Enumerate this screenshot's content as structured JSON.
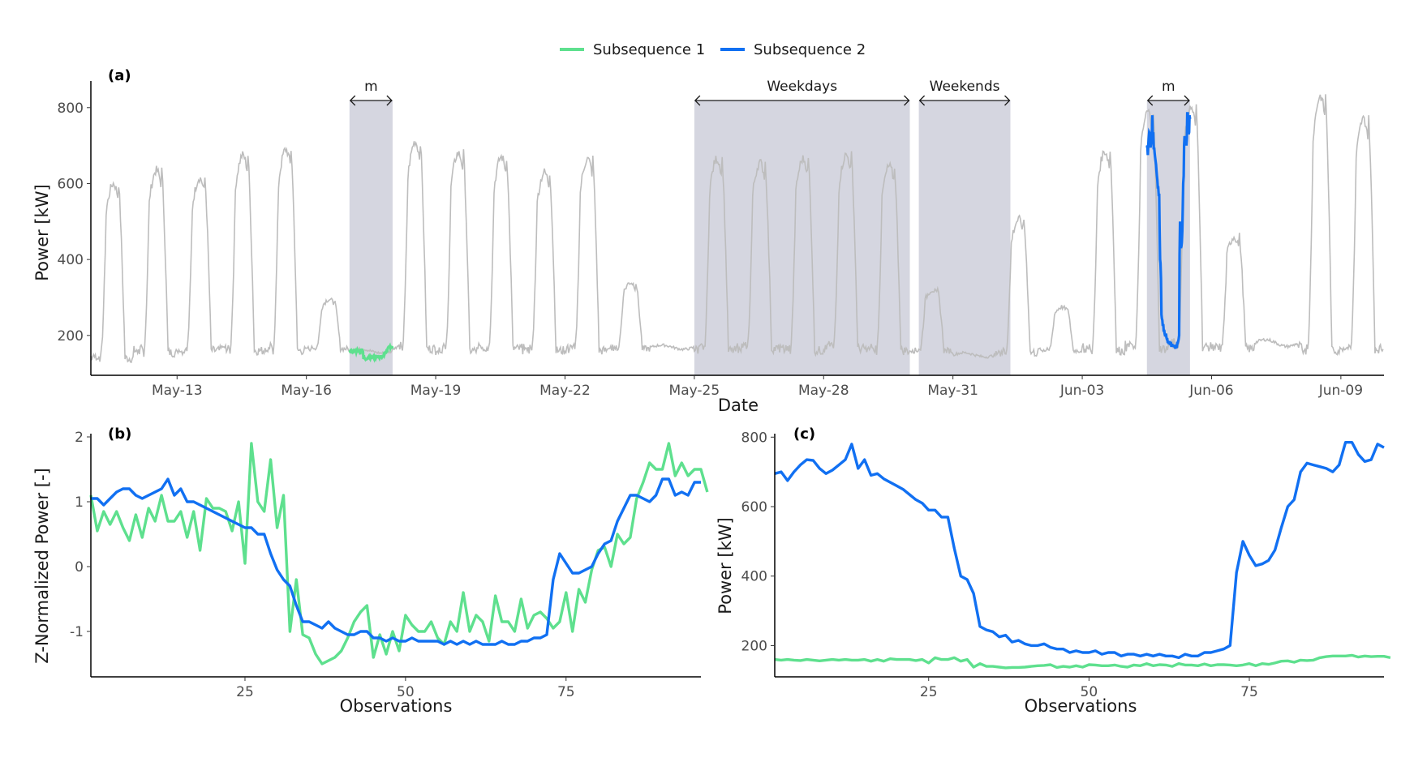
{
  "legend": {
    "items": [
      {
        "label": "Subsequence 1",
        "color": "#5ee08e"
      },
      {
        "label": "Subsequence 2",
        "color": "#1170f2"
      }
    ]
  },
  "colors": {
    "background_series": "#bdbdbd",
    "shade": "#d5d6e0",
    "axis": "#000000"
  },
  "chart_data": [
    {
      "panel": "(a)",
      "type": "line",
      "xlabel": "Date",
      "ylabel": "Power [kW]",
      "x_range": [
        "2020-05-11T00:00",
        "2020-06-10T00:00"
      ],
      "ylim": [
        95,
        870
      ],
      "x_ticks": [
        {
          "date": "2020-05-13",
          "label": "May-13"
        },
        {
          "date": "2020-05-16",
          "label": "May-16"
        },
        {
          "date": "2020-05-19",
          "label": "May-19"
        },
        {
          "date": "2020-05-22",
          "label": "May-22"
        },
        {
          "date": "2020-05-25",
          "label": "May-25"
        },
        {
          "date": "2020-05-28",
          "label": "May-28"
        },
        {
          "date": "2020-05-31",
          "label": "May-31"
        },
        {
          "date": "2020-06-03",
          "label": "Jun-03"
        },
        {
          "date": "2020-06-06",
          "label": "Jun-06"
        },
        {
          "date": "2020-06-09",
          "label": "Jun-09"
        }
      ],
      "y_ticks": [
        200,
        400,
        600,
        800
      ],
      "daily_profile": [
        {
          "date": "2020-05-11",
          "base": 140,
          "peak": 600
        },
        {
          "date": "2020-05-12",
          "base": 155,
          "peak": 635
        },
        {
          "date": "2020-05-13",
          "base": 160,
          "peak": 615
        },
        {
          "date": "2020-05-14",
          "base": 160,
          "peak": 675
        },
        {
          "date": "2020-05-15",
          "base": 160,
          "peak": 690
        },
        {
          "date": "2020-05-16",
          "base": 165,
          "peak": 295
        },
        {
          "date": "2020-05-17",
          "base": 150,
          "peak": 168
        },
        {
          "date": "2020-05-18",
          "base": 165,
          "peak": 710
        },
        {
          "date": "2020-05-19",
          "base": 160,
          "peak": 680
        },
        {
          "date": "2020-05-20",
          "base": 165,
          "peak": 670
        },
        {
          "date": "2020-05-21",
          "base": 160,
          "peak": 630
        },
        {
          "date": "2020-05-22",
          "base": 160,
          "peak": 665
        },
        {
          "date": "2020-05-23",
          "base": 165,
          "peak": 340
        },
        {
          "date": "2020-05-24",
          "base": 160,
          "peak": 178
        },
        {
          "date": "2020-05-25",
          "base": 160,
          "peak": 665
        },
        {
          "date": "2020-05-26",
          "base": 165,
          "peak": 655
        },
        {
          "date": "2020-05-27",
          "base": 160,
          "peak": 665
        },
        {
          "date": "2020-05-28",
          "base": 165,
          "peak": 675
        },
        {
          "date": "2020-05-29",
          "base": 160,
          "peak": 645
        },
        {
          "date": "2020-05-30",
          "base": 160,
          "peak": 320
        },
        {
          "date": "2020-05-31",
          "base": 140,
          "peak": 158
        },
        {
          "date": "2020-06-01",
          "base": 155,
          "peak": 505
        },
        {
          "date": "2020-06-02",
          "base": 160,
          "peak": 275
        },
        {
          "date": "2020-06-03",
          "base": 160,
          "peak": 685
        },
        {
          "date": "2020-06-04",
          "base": 165,
          "peak": 790
        },
        {
          "date": "2020-06-05",
          "base": 170,
          "peak": 800
        },
        {
          "date": "2020-06-06",
          "base": 165,
          "peak": 460
        },
        {
          "date": "2020-06-07",
          "base": 165,
          "peak": 195
        },
        {
          "date": "2020-06-08",
          "base": 160,
          "peak": 830
        },
        {
          "date": "2020-06-09",
          "base": 165,
          "peak": 770
        }
      ],
      "shaded_regions": [
        {
          "start": "2020-05-17T00:00",
          "end": "2020-05-18T00:00",
          "label": "m"
        },
        {
          "start": "2020-05-25T00:00",
          "end": "2020-05-30T00:00",
          "label": "Weekdays"
        },
        {
          "start": "2020-05-30T05:00",
          "end": "2020-06-01T08:00",
          "label": "Weekends"
        },
        {
          "start": "2020-06-04T12:00",
          "end": "2020-06-05T12:00",
          "label": "m"
        }
      ],
      "highlights": [
        {
          "series": "Subsequence 1",
          "start": "2020-05-17T00:00",
          "end": "2020-05-18T00:00"
        },
        {
          "series": "Subsequence 2",
          "start": "2020-06-04T12:00",
          "end": "2020-06-05T12:00"
        }
      ]
    },
    {
      "panel": "(b)",
      "type": "line",
      "xlabel": "Observations",
      "ylabel": "Z-Normalized Power [-]",
      "xlim": [
        1,
        96
      ],
      "ylim": [
        -1.7,
        2.05
      ],
      "x_ticks": [
        25,
        50,
        75
      ],
      "y_ticks": [
        -1,
        0,
        1,
        2
      ],
      "series": [
        {
          "name": "Subsequence 1",
          "color": "#5ee08e",
          "values": [
            1.1,
            0.55,
            0.85,
            0.65,
            0.85,
            0.6,
            0.4,
            0.8,
            0.45,
            0.9,
            0.7,
            1.1,
            0.7,
            0.7,
            0.85,
            0.45,
            0.85,
            0.25,
            1.05,
            0.9,
            0.9,
            0.85,
            0.55,
            1.0,
            0.05,
            1.9,
            1.0,
            0.85,
            1.65,
            0.6,
            1.1,
            -1.0,
            -0.2,
            -1.05,
            -1.1,
            -1.35,
            -1.5,
            -1.45,
            -1.4,
            -1.3,
            -1.1,
            -0.85,
            -0.7,
            -0.6,
            -1.4,
            -1.05,
            -1.35,
            -1.0,
            -1.3,
            -0.75,
            -0.9,
            -1.0,
            -1.0,
            -0.85,
            -1.1,
            -1.2,
            -0.85,
            -1.0,
            -0.4,
            -1.0,
            -0.75,
            -0.85,
            -1.15,
            -0.45,
            -0.85,
            -0.85,
            -1.0,
            -0.5,
            -0.95,
            -0.75,
            -0.7,
            -0.8,
            -0.95,
            -0.85,
            -0.4,
            -1.0,
            -0.35,
            -0.55,
            -0.05,
            0.25,
            0.3,
            0.0,
            0.5,
            0.35,
            0.45,
            1.05,
            1.3,
            1.6,
            1.5,
            1.5,
            1.9,
            1.4,
            1.6,
            1.4,
            1.5,
            1.5,
            1.15
          ]
        },
        {
          "name": "Subsequence 2",
          "color": "#1170f2",
          "values": [
            1.05,
            1.05,
            0.95,
            1.05,
            1.15,
            1.2,
            1.2,
            1.1,
            1.05,
            1.1,
            1.15,
            1.2,
            1.35,
            1.1,
            1.2,
            1.0,
            1.0,
            0.95,
            0.9,
            0.85,
            0.8,
            0.75,
            0.7,
            0.65,
            0.6,
            0.6,
            0.5,
            0.5,
            0.2,
            -0.05,
            -0.2,
            -0.3,
            -0.6,
            -0.85,
            -0.85,
            -0.9,
            -0.95,
            -0.85,
            -0.95,
            -1.0,
            -1.05,
            -1.05,
            -1.0,
            -1.0,
            -1.1,
            -1.1,
            -1.15,
            -1.1,
            -1.15,
            -1.15,
            -1.1,
            -1.15,
            -1.15,
            -1.15,
            -1.15,
            -1.2,
            -1.15,
            -1.2,
            -1.15,
            -1.2,
            -1.15,
            -1.2,
            -1.2,
            -1.2,
            -1.15,
            -1.2,
            -1.2,
            -1.15,
            -1.15,
            -1.1,
            -1.1,
            -1.05,
            -0.2,
            0.2,
            0.05,
            -0.1,
            -0.1,
            -0.05,
            0.0,
            0.2,
            0.35,
            0.4,
            0.7,
            0.9,
            1.1,
            1.1,
            1.05,
            1.0,
            1.1,
            1.35,
            1.35,
            1.1,
            1.15,
            1.1,
            1.3,
            1.3
          ]
        }
      ]
    },
    {
      "panel": "(c)",
      "type": "line",
      "xlabel": "Observations",
      "ylabel": "Power [kW]",
      "xlim": [
        1,
        96
      ],
      "ylim": [
        110,
        810
      ],
      "x_ticks": [
        25,
        50,
        75
      ],
      "y_ticks": [
        200,
        400,
        600,
        800
      ],
      "series": [
        {
          "name": "Subsequence 1",
          "color": "#5ee08e",
          "values": [
            160,
            158,
            160,
            158,
            157,
            160,
            158,
            156,
            158,
            160,
            158,
            160,
            158,
            158,
            160,
            155,
            160,
            155,
            162,
            160,
            160,
            160,
            157,
            160,
            150,
            165,
            160,
            160,
            165,
            155,
            160,
            138,
            148,
            140,
            140,
            138,
            136,
            137,
            137,
            138,
            140,
            142,
            143,
            145,
            137,
            140,
            138,
            142,
            138,
            145,
            144,
            142,
            142,
            144,
            140,
            138,
            144,
            142,
            148,
            142,
            145,
            144,
            140,
            148,
            144,
            144,
            142,
            147,
            142,
            145,
            145,
            144,
            142,
            144,
            148,
            142,
            148,
            146,
            150,
            155,
            156,
            152,
            158,
            157,
            158,
            165,
            168,
            170,
            170,
            170,
            172,
            167,
            170,
            168,
            169,
            169,
            165
          ]
        },
        {
          "name": "Subsequence 2",
          "color": "#1170f2",
          "values": [
            695,
            700,
            675,
            700,
            720,
            735,
            733,
            710,
            695,
            705,
            720,
            735,
            780,
            710,
            735,
            690,
            695,
            680,
            670,
            660,
            650,
            635,
            620,
            610,
            590,
            590,
            570,
            570,
            480,
            400,
            390,
            350,
            255,
            245,
            240,
            225,
            230,
            210,
            215,
            205,
            200,
            200,
            205,
            195,
            190,
            190,
            180,
            185,
            180,
            180,
            185,
            175,
            180,
            180,
            170,
            175,
            175,
            170,
            175,
            170,
            175,
            170,
            170,
            165,
            175,
            170,
            170,
            180,
            180,
            185,
            190,
            200,
            410,
            500,
            460,
            430,
            435,
            445,
            475,
            540,
            600,
            620,
            700,
            725,
            720,
            715,
            710,
            700,
            720,
            785,
            785,
            750,
            730,
            735,
            780,
            770
          ]
        }
      ]
    }
  ]
}
